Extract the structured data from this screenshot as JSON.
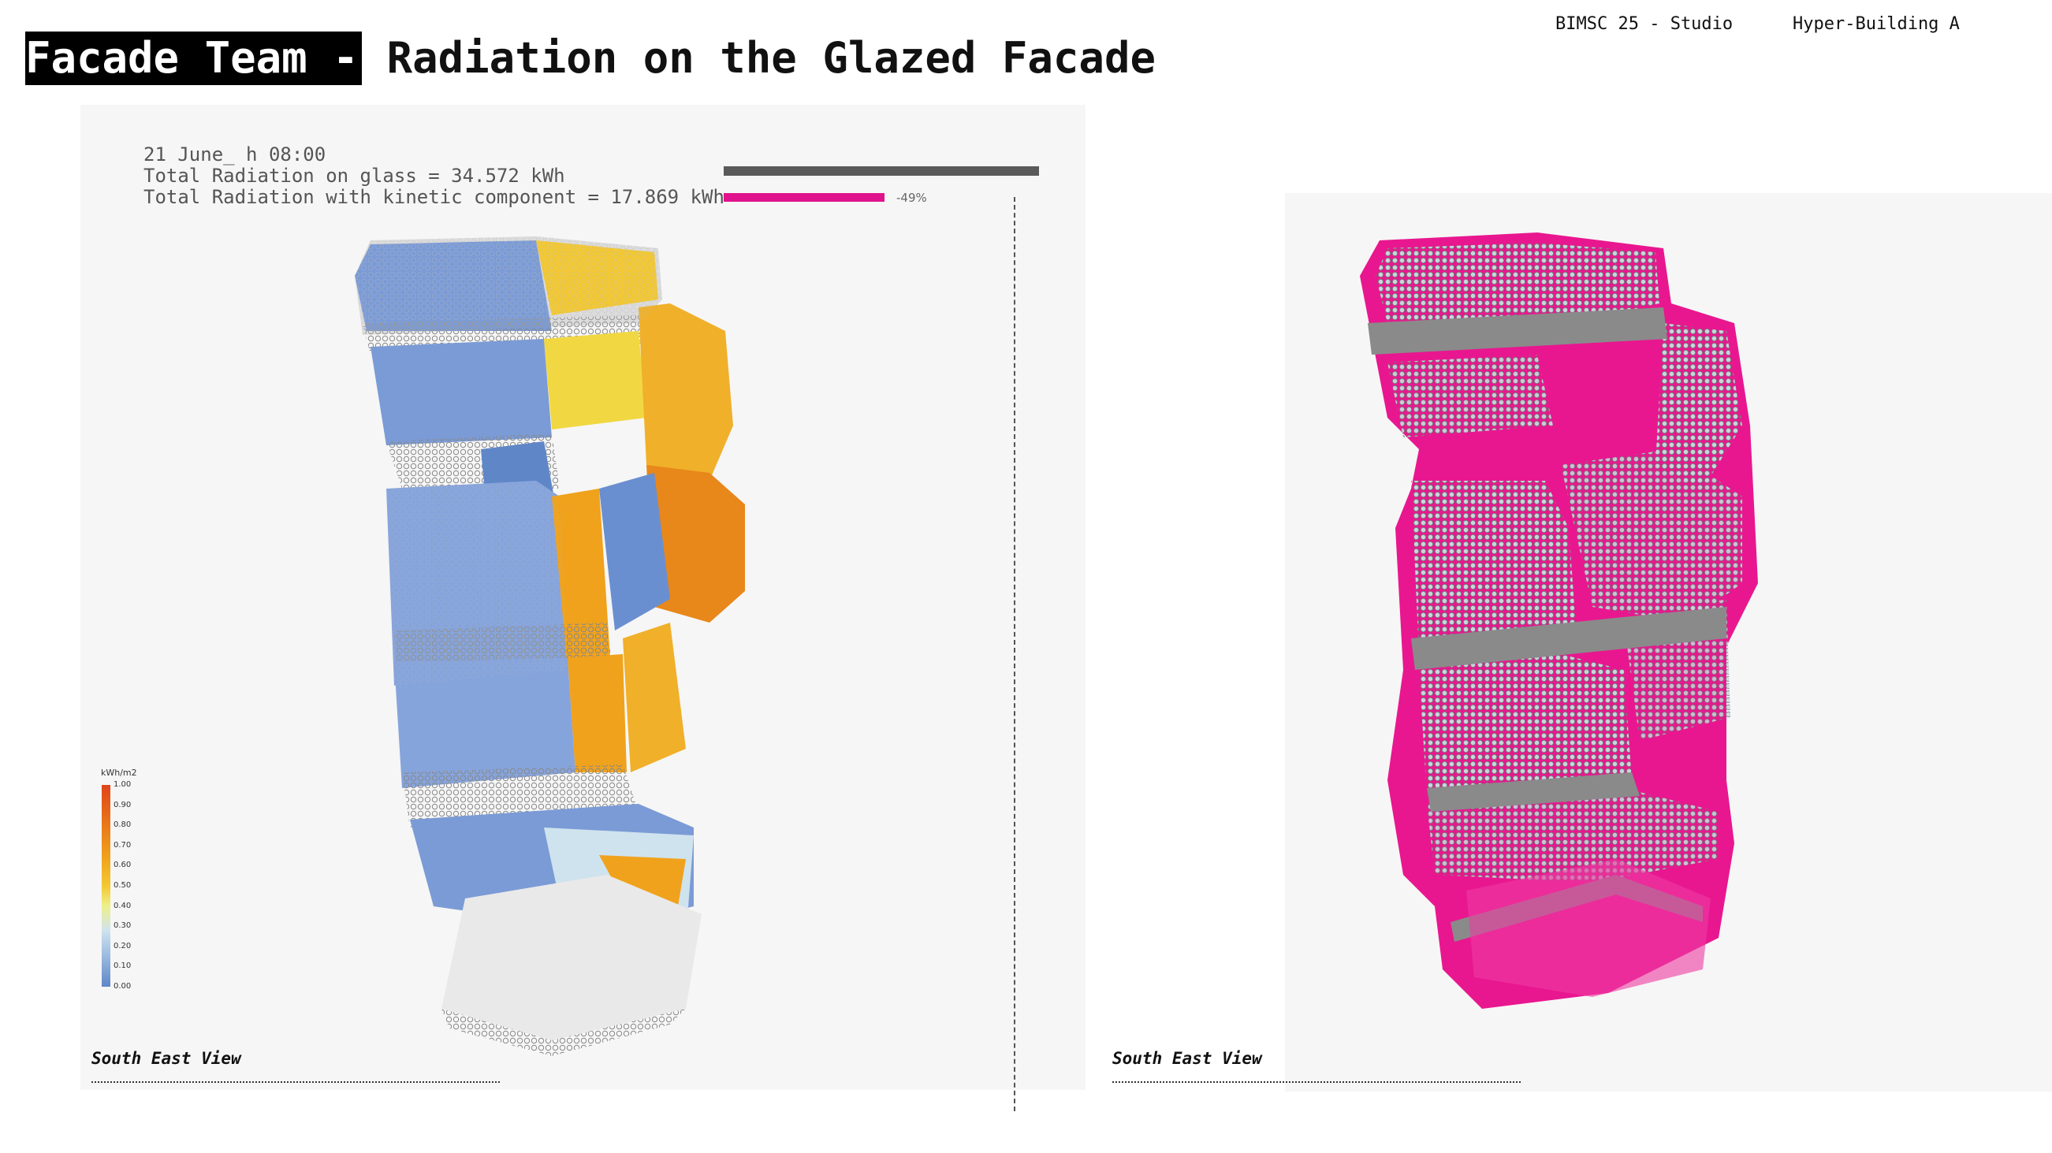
{
  "header": {
    "title_highlight": "Facade Team -",
    "title_rest": "Radiation on the Glazed Facade",
    "studio": "BIMSC 25 - Studio",
    "project": "Hyper-Building A"
  },
  "left_panel": {
    "date_line": "21 June_ h 08:00",
    "total_glass_line": "Total Radiation on glass = 34.572 kWh",
    "total_kinetic_line": "Total Radiation with kinetic component = 17.869 kWh",
    "reduction_label": "-49%",
    "reduction_fraction": 0.51,
    "caption": "South East View"
  },
  "right_panel": {
    "caption": "South East View"
  },
  "legend": {
    "unit": "kWh/m2",
    "ticks": [
      "1.00",
      "0.90",
      "0.80",
      "0.70",
      "0.60",
      "0.50",
      "0.40",
      "0.30",
      "0.20",
      "0.10",
      "0.00"
    ]
  },
  "colors": {
    "kinetic_bar": "#e0138c",
    "glass_bar": "#5a5a5a",
    "cool": "#7b9bd6",
    "warm": "#f0a21c",
    "hot": "#e8801a",
    "magenta": "#e8178f",
    "panel_silver": "#c8d6df"
  }
}
